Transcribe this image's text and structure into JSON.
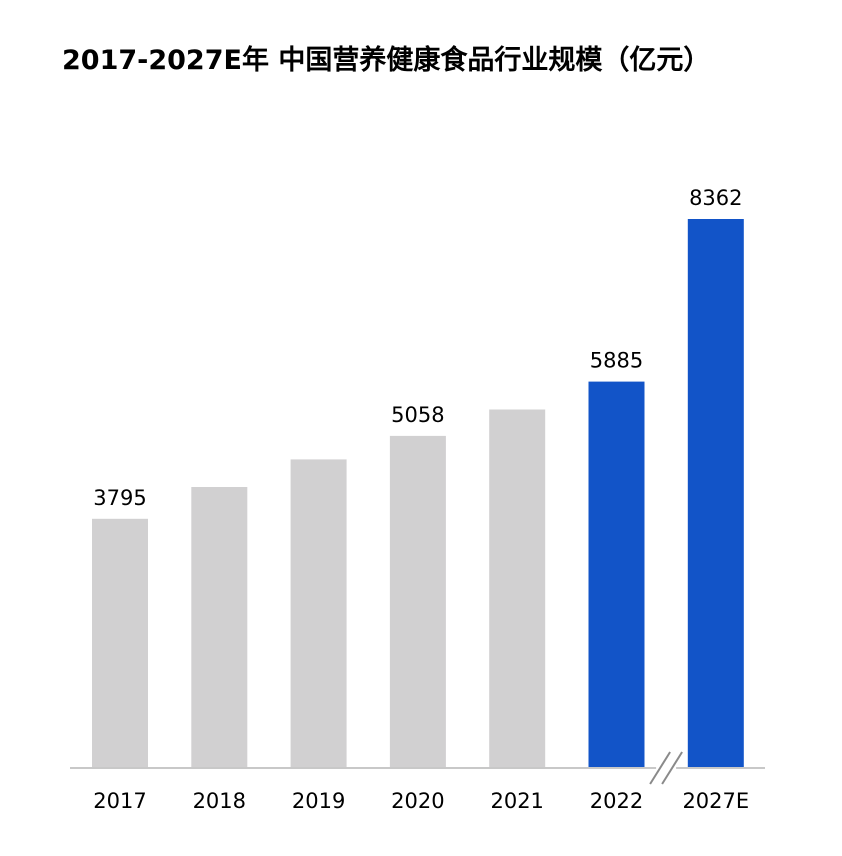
{
  "chart_data": {
    "type": "bar",
    "title": "2017-2027E年 中国营养健康食品行业规模（亿元）",
    "xlabel": "",
    "ylabel": "",
    "categories": [
      "2017",
      "2018",
      "2019",
      "2020",
      "2021",
      "2022",
      "2027E"
    ],
    "values": [
      3795,
      4280,
      4700,
      5058,
      5460,
      5885,
      8362
    ],
    "data_labels": [
      "3795",
      "",
      "",
      "5058",
      "",
      "5885",
      "8362"
    ],
    "ylim": [
      0,
      8362
    ],
    "grid": false,
    "legend": "none",
    "axis_break": "between 2022 and 2027E",
    "colors": {
      "historical": "#d1d0d1",
      "highlight": "#1254c8",
      "axis": "#c8c8c8",
      "break_mark": "#8a8a8a"
    },
    "highlight_categories": [
      "2022",
      "2027E"
    ]
  }
}
